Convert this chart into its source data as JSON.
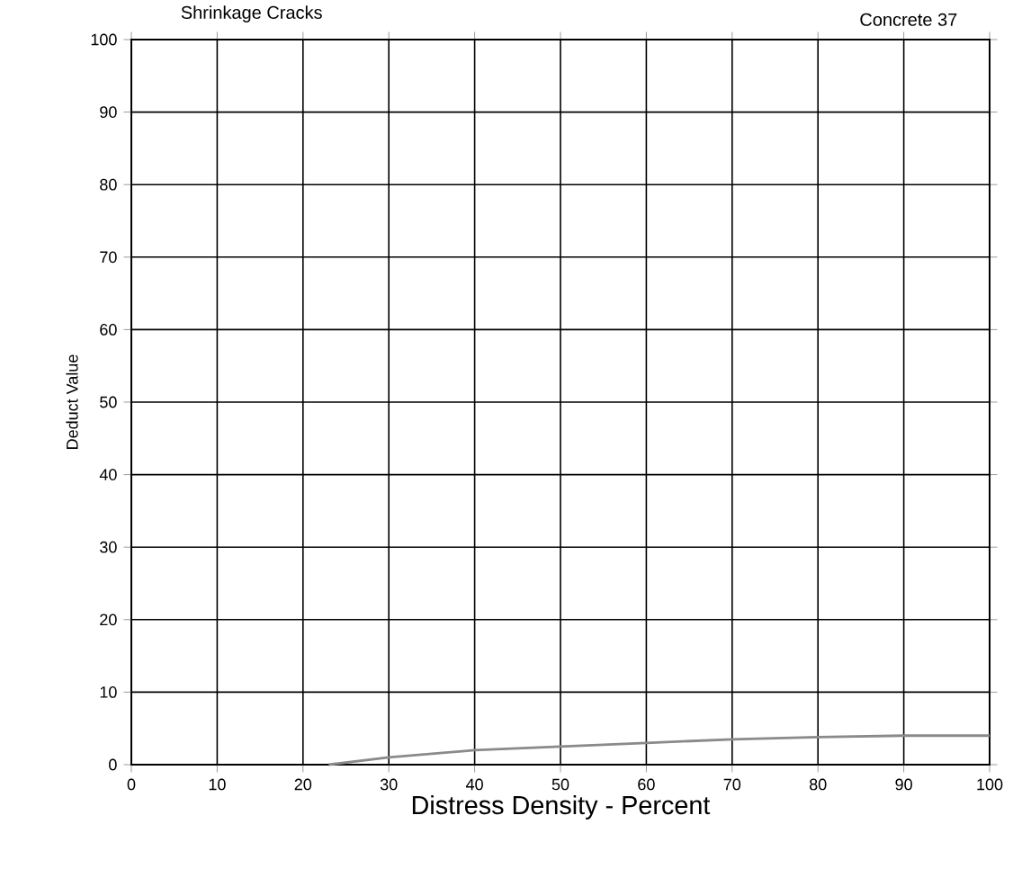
{
  "chart_data": {
    "type": "line",
    "title": "Shrinkage Cracks",
    "subtitle": "Concrete 37",
    "xlabel": "Distress Density - Percent",
    "ylabel": "Deduct Value",
    "series": [
      {
        "color": "#8a8a8a",
        "x": [
          23,
          30,
          40,
          50,
          60,
          70,
          80,
          90,
          100
        ],
        "values": [
          0,
          1,
          2,
          2.5,
          3,
          3.5,
          3.8,
          4,
          4
        ]
      }
    ],
    "xlim": [
      0,
      100
    ],
    "ylim": [
      0,
      100
    ],
    "xticks": [
      0,
      10,
      20,
      30,
      40,
      50,
      60,
      70,
      80,
      90,
      100
    ],
    "yticks": [
      0,
      10,
      20,
      30,
      40,
      50,
      60,
      70,
      80,
      90,
      100
    ],
    "grid": true,
    "marker": "none",
    "line_style": "solid"
  }
}
